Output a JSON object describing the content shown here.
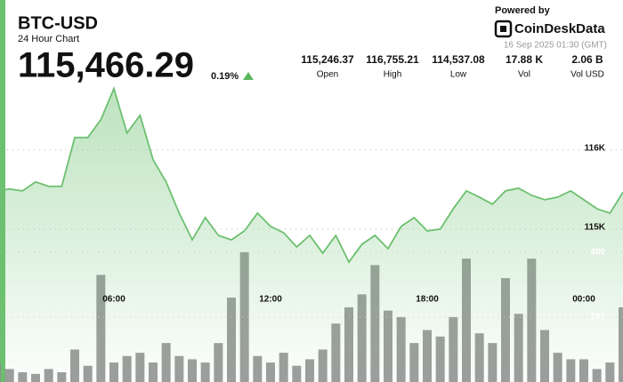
{
  "chart_data": {
    "type": "price-volume",
    "title": "BTC-USD",
    "subtitle": "24 Hour Chart",
    "price": "115,466.29",
    "change": "0.19%",
    "stats": [
      {
        "value": "115,246.37",
        "label": "Open"
      },
      {
        "value": "116,755.21",
        "label": "High"
      },
      {
        "value": "114,537.08",
        "label": "Low"
      },
      {
        "value": "17.88 K",
        "label": "Vol"
      },
      {
        "value": "2.06 B",
        "label": "Vol USD"
      }
    ],
    "powered_by": "Powered by",
    "brand": "CoinDeskData",
    "timestamp": "16 Sep 2025 01:30 (GMT)",
    "x": [
      1.5,
      2,
      2.5,
      3,
      3.5,
      4,
      4.5,
      5,
      5.5,
      6,
      6.5,
      7,
      7.5,
      8,
      8.5,
      9,
      9.5,
      10,
      10.5,
      11,
      11.5,
      12,
      12.5,
      13,
      13.5,
      14,
      14.5,
      15,
      15.5,
      16,
      16.5,
      17,
      17.5,
      18,
      18.5,
      19,
      19.5,
      20,
      20.5,
      21,
      21.5,
      22,
      22.5,
      23,
      23.5,
      24,
      24.5,
      25,
      25.5
    ],
    "xlim": [
      1.5,
      25.5
    ],
    "xticks": [
      {
        "value": 6,
        "label": "06:00"
      },
      {
        "value": 12,
        "label": "12:00"
      },
      {
        "value": 18,
        "label": "18:00"
      },
      {
        "value": 24,
        "label": "00:00"
      }
    ],
    "ylim": [
      113070,
      117220
    ],
    "yticks": [
      {
        "value": 116000,
        "label": "116K"
      },
      {
        "value": 115000,
        "label": "115K"
      }
    ],
    "y2lim": [
      0,
      1007
    ],
    "y2ticks": [
      400,
      200
    ],
    "grid": true,
    "series": [
      {
        "name": "Price",
        "color": "#6cc070",
        "values": [
          115483,
          115506,
          115483,
          115596,
          115540,
          115540,
          116157,
          116157,
          116382,
          116775,
          116213,
          116438,
          115876,
          115596,
          115202,
          114865,
          115146,
          114921,
          114865,
          114978,
          115202,
          115034,
          114955,
          114775,
          114921,
          114697,
          114921,
          114584,
          114809,
          114921,
          114753,
          115034,
          115146,
          114978,
          115000,
          115258,
          115483,
          115404,
          115315,
          115483,
          115517,
          115427,
          115371,
          115404,
          115483,
          115371,
          115258,
          115202,
          115466
        ]
      },
      {
        "name": "Volume",
        "color": "#8c8c8c",
        "axis": "y2",
        "values": [
          60,
          40,
          30,
          25,
          40,
          30,
          100,
          50,
          330,
          60,
          80,
          90,
          60,
          120,
          80,
          70,
          60,
          120,
          260,
          400,
          80,
          60,
          90,
          50,
          70,
          100,
          180,
          230,
          270,
          360,
          220,
          200,
          120,
          160,
          140,
          200,
          380,
          150,
          120,
          320,
          210,
          380,
          160,
          90,
          70,
          70,
          40,
          60,
          230
        ]
      }
    ]
  }
}
